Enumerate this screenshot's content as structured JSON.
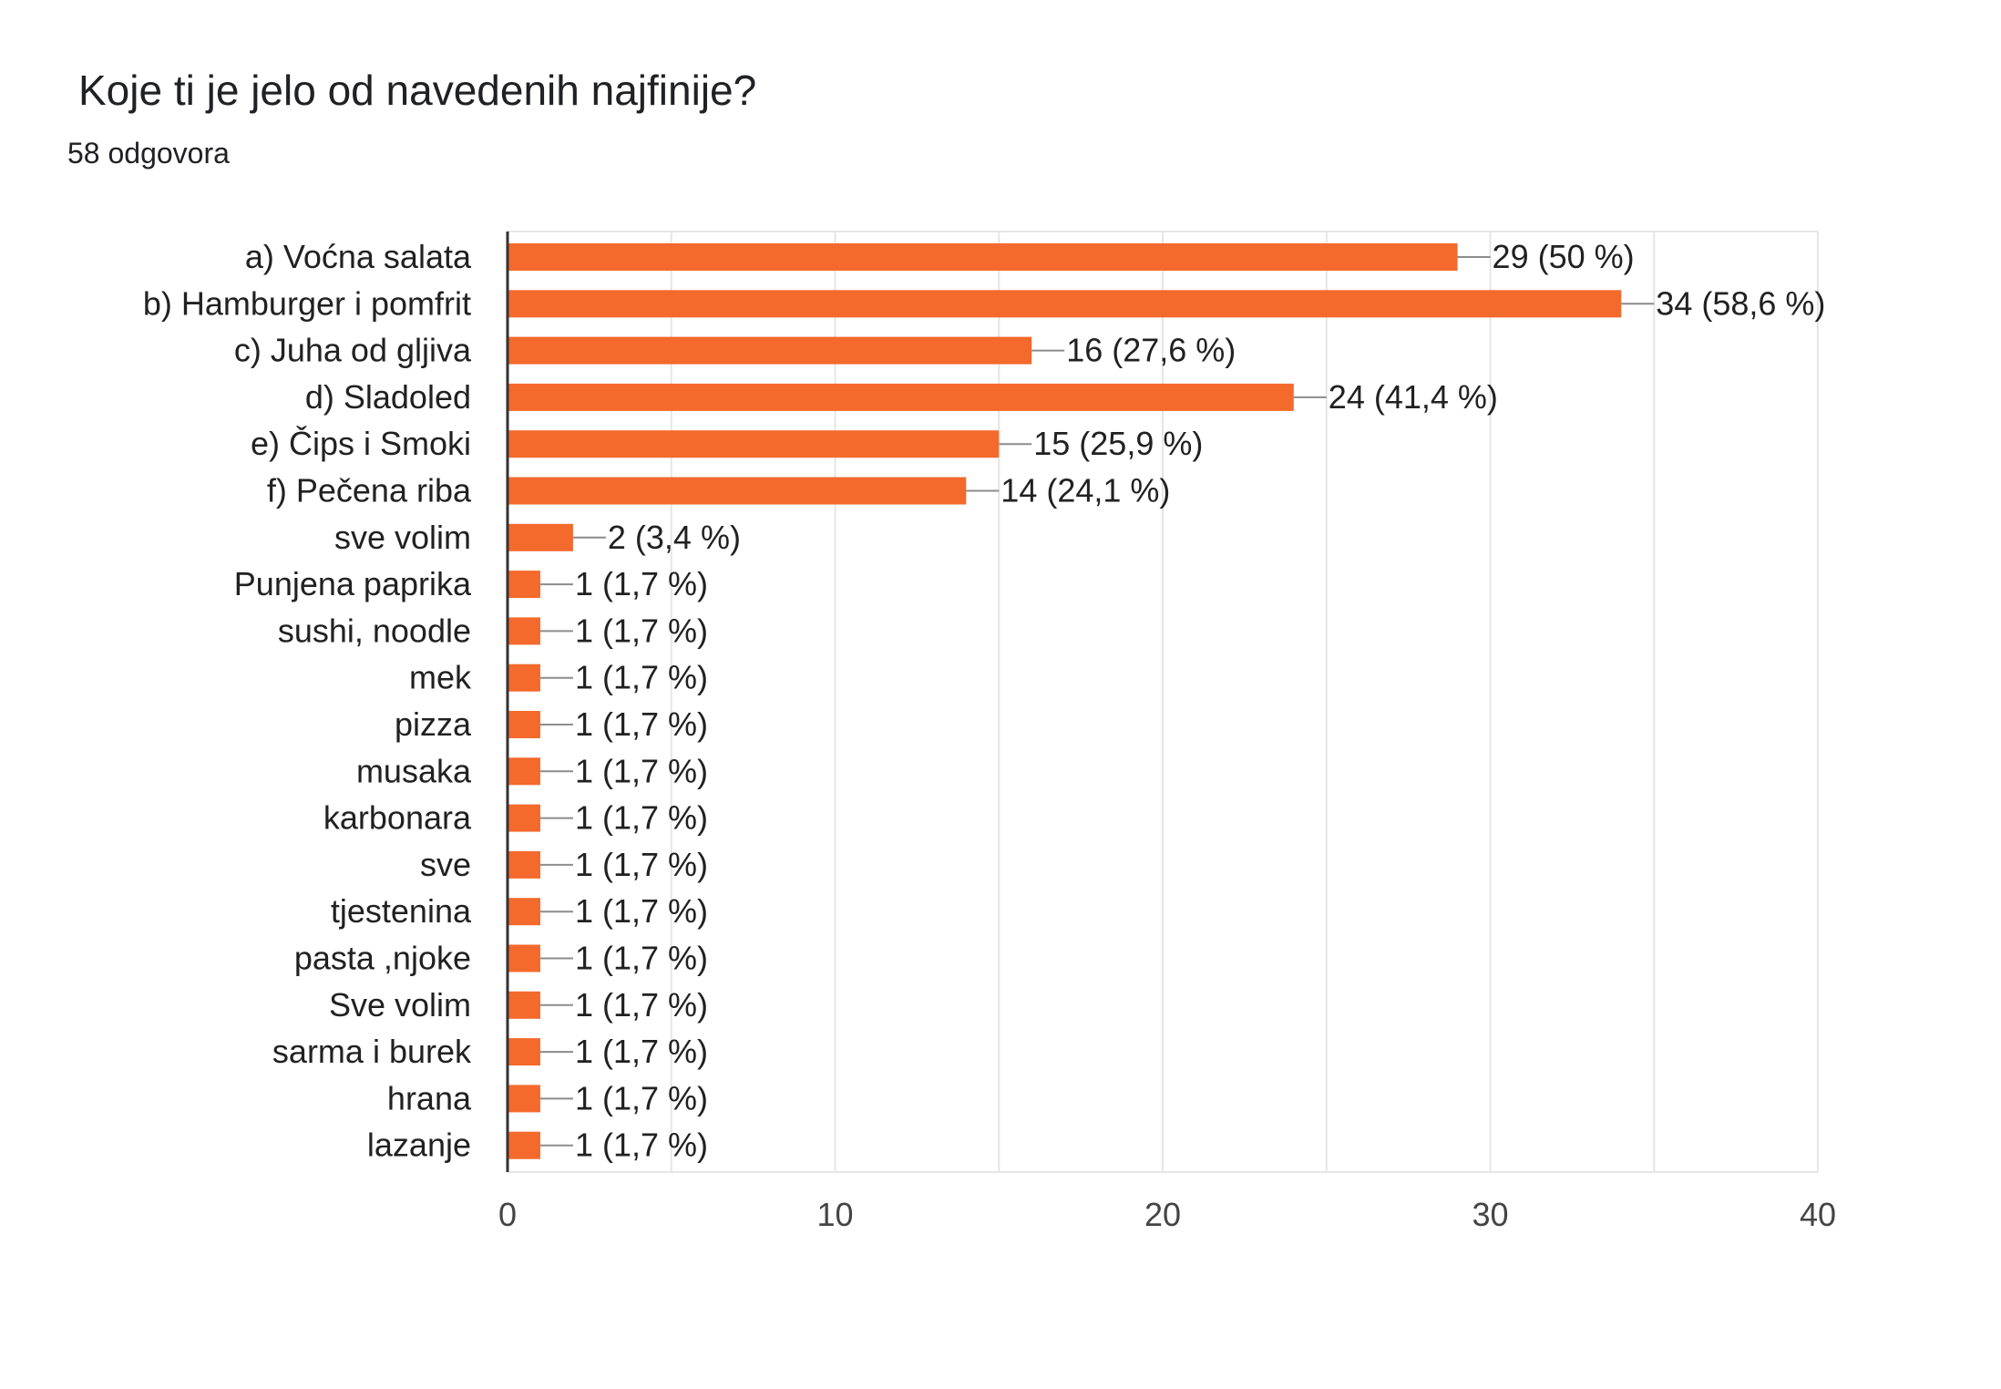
{
  "header": {
    "title": "Koje ti je jelo od navedenih najfinije?",
    "subtitle": "58 odgovora"
  },
  "colors": {
    "bar": "#f4692c",
    "grid": "#e6e6e6",
    "axis": "#333333",
    "leader": "#8c8c8c",
    "text": "#212121",
    "tick_text": "#444444"
  },
  "chart_data": {
    "type": "bar",
    "orientation": "horizontal",
    "categories": [
      "a) Voćna salata",
      "b) Hamburger i pomfrit",
      "c) Juha od gljiva",
      "d) Sladoled",
      "e) Čips i Smoki",
      "f) Pečena riba",
      "sve volim",
      "Punjena paprika",
      "sushi, noodle",
      "mek",
      "pizza",
      "musaka",
      "karbonara",
      "sve",
      "tjestenina",
      "pasta ,njoke",
      "Sve volim",
      "sarma i burek",
      "hrana",
      "lazanje"
    ],
    "values": [
      29,
      34,
      16,
      24,
      15,
      14,
      2,
      1,
      1,
      1,
      1,
      1,
      1,
      1,
      1,
      1,
      1,
      1,
      1,
      1
    ],
    "data_labels": [
      "29 (50 %)",
      "34 (58,6 %)",
      "16 (27,6 %)",
      "24 (41,4 %)",
      "15 (25,9 %)",
      "14 (24,1 %)",
      "2 (3,4 %)",
      "1 (1,7 %)",
      "1 (1,7 %)",
      "1 (1,7 %)",
      "1 (1,7 %)",
      "1 (1,7 %)",
      "1 (1,7 %)",
      "1 (1,7 %)",
      "1 (1,7 %)",
      "1 (1,7 %)",
      "1 (1,7 %)",
      "1 (1,7 %)",
      "1 (1,7 %)",
      "1 (1,7 %)"
    ],
    "xlim": [
      0,
      40
    ],
    "xticks": [
      0,
      10,
      20,
      30,
      40
    ],
    "xtick_labels": [
      "0",
      "10",
      "20",
      "30",
      "40"
    ],
    "minor_grid_step": 5,
    "grid": true,
    "legend": "none"
  }
}
